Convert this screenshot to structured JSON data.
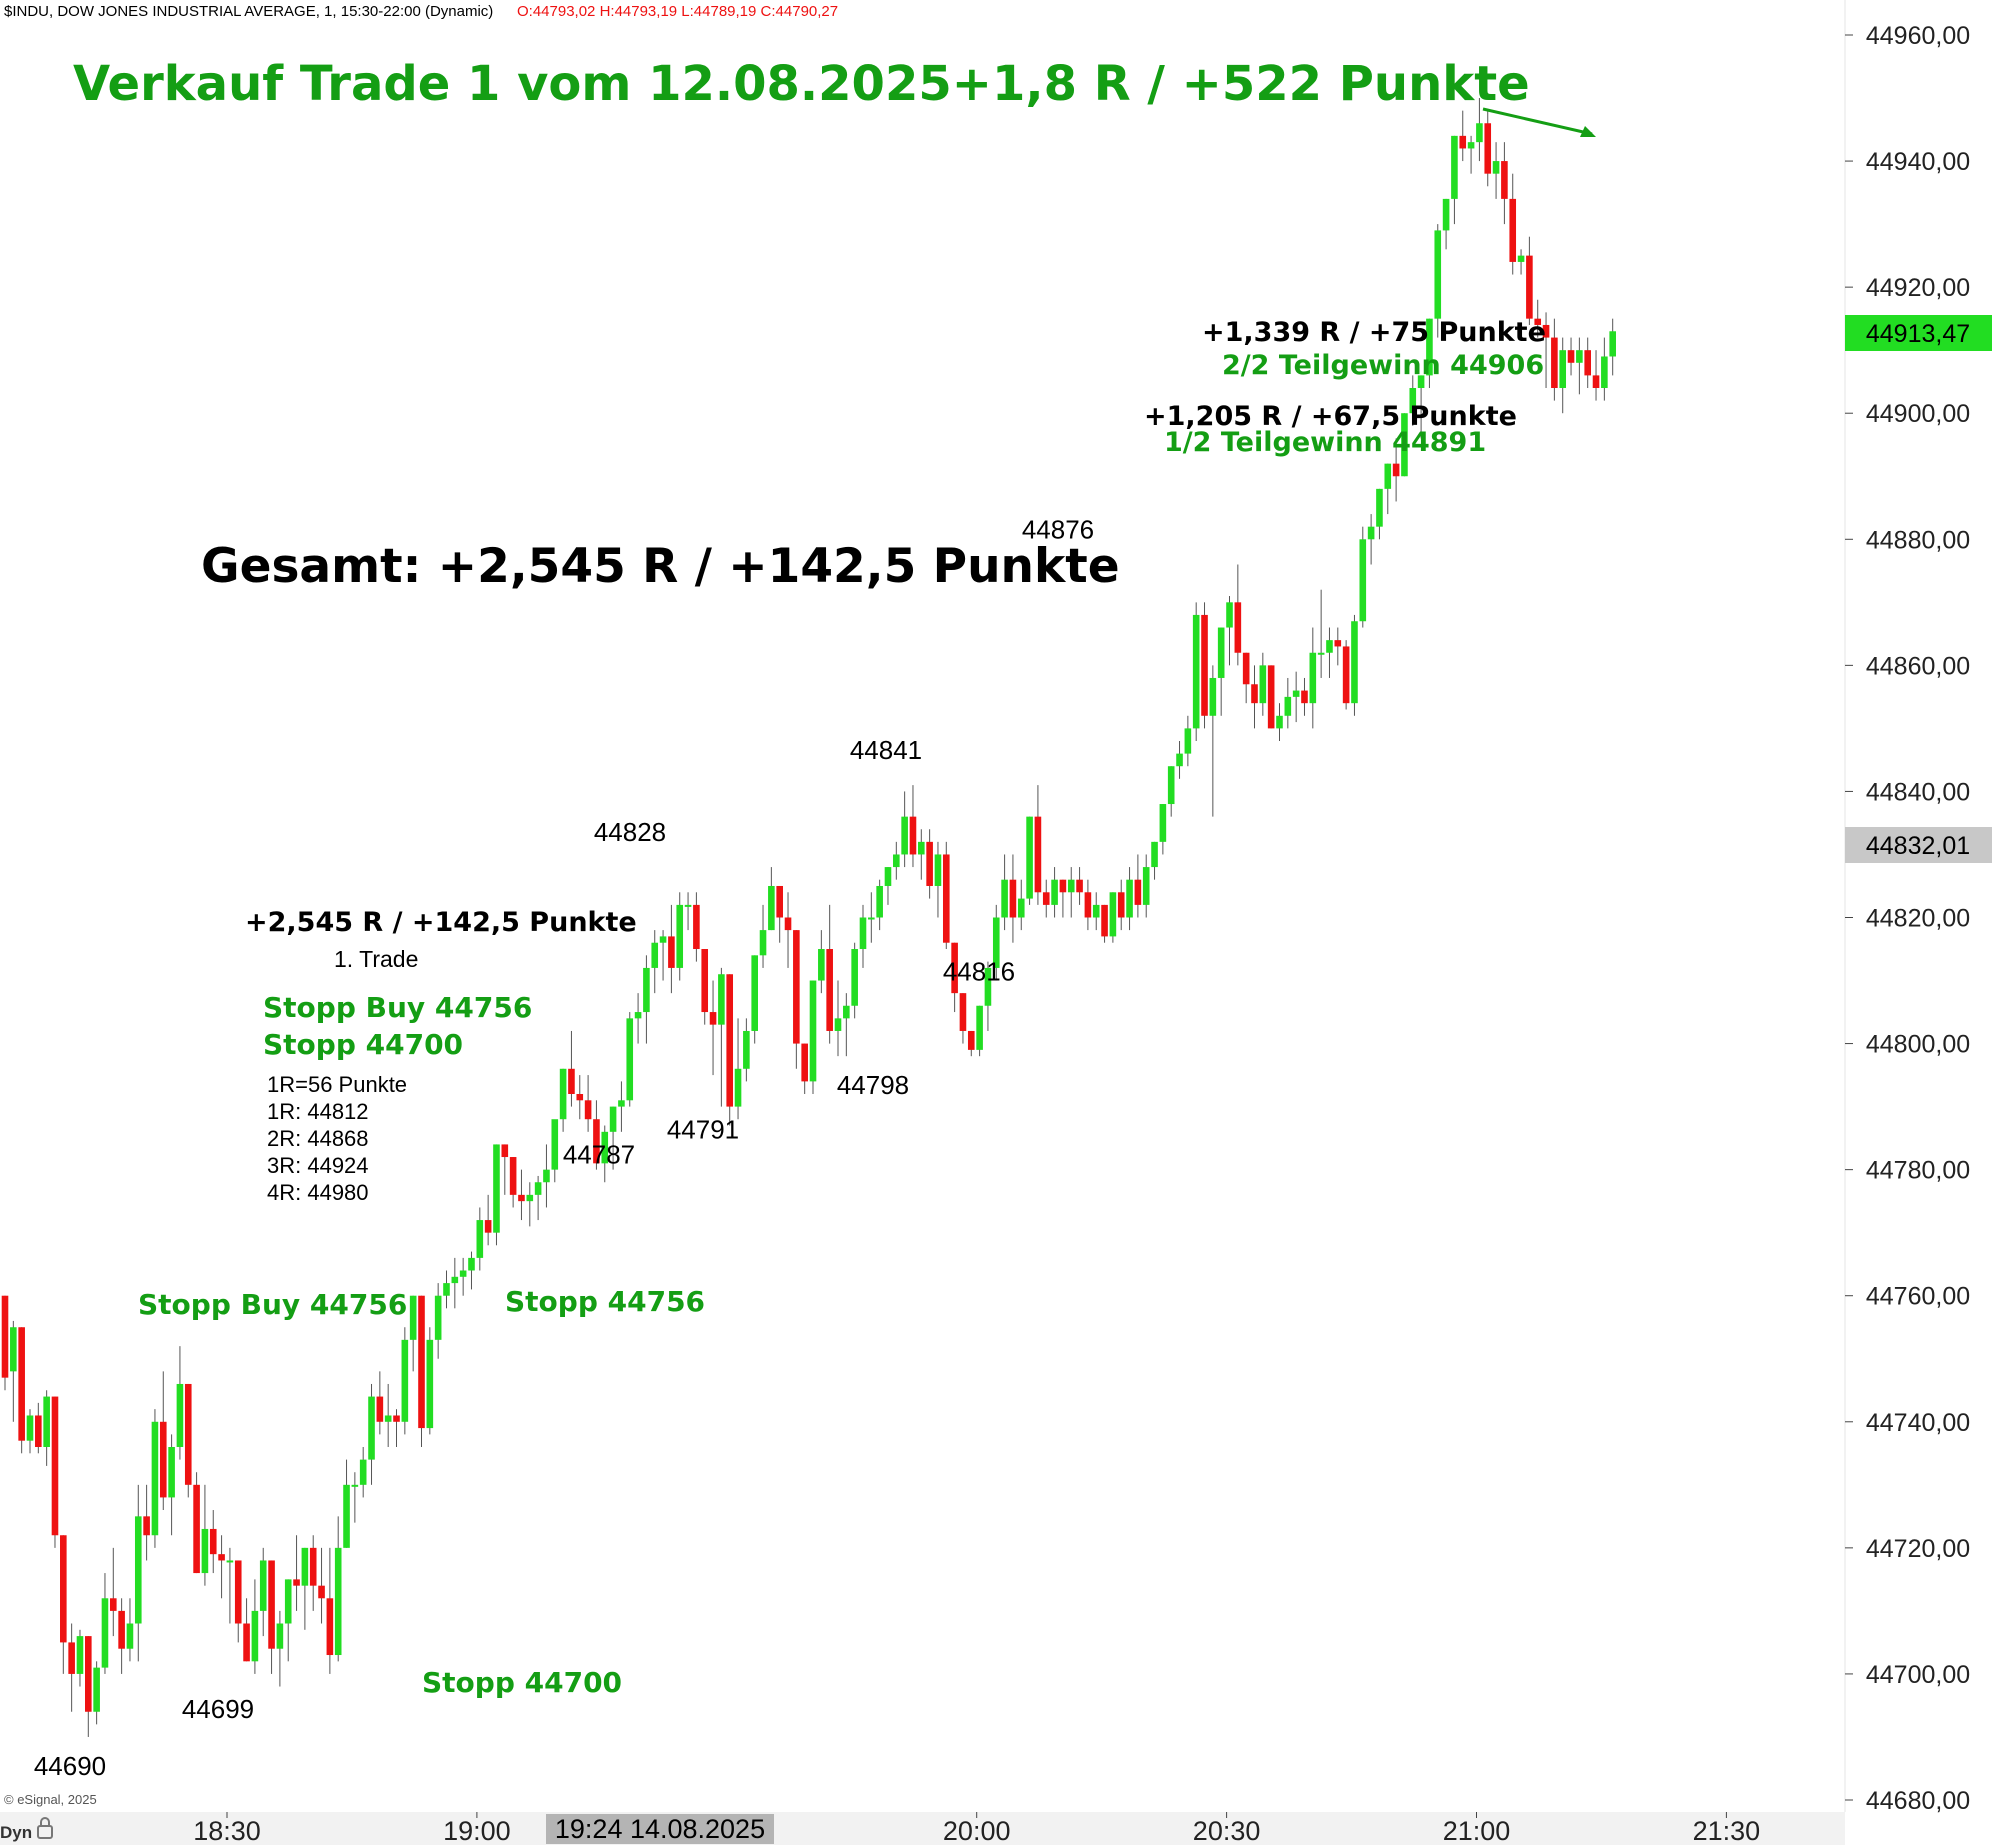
{
  "header": {
    "symbol_info": "$INDU, DOW JONES INDUSTRIAL AVERAGE, 1, 15:30-22:00 (Dynamic)",
    "ohlc": "O:44793,02 H:44793,19 L:44789,19 C:44790,27"
  },
  "footer": {
    "copyright": "© eSignal, 2025",
    "left_label": "Dyn",
    "lock_icon": "lock-icon",
    "cursor_time": "19:24 14.08.2025"
  },
  "price_axis": {
    "last_price": "44913,47",
    "last_price_color": "#22dd22",
    "cursor_price": "44832,01",
    "ticks": [
      "44960,00",
      "44940,00",
      "44920,00",
      "44900,00",
      "44880,00",
      "44860,00",
      "44840,00",
      "44820,00",
      "44800,00",
      "44780,00",
      "44760,00",
      "44740,00",
      "44720,00",
      "44700,00",
      "44680,00"
    ]
  },
  "annotations": {
    "headline": "Verkauf Trade 1 vom 12.08.2025+1,8 R / +522 Punkte",
    "total": "Gesamt: +2,545 R / +142,5 Punkte",
    "result_2": "+1,339 R / +75 Punkte",
    "partial_2": "2/2 Teilgewinn 44906",
    "result_1": "+1,205 R / +67,5 Punkte",
    "partial_1": "1/2 Teilgewinn 44891",
    "trade_result": "+2,545 R / +142,5 Punkte",
    "trade_label": "1. Trade",
    "stop_buy_a": "Stopp Buy 44756",
    "stop_a": "Stopp 44700",
    "r_lines": [
      "1R=56 Punkte",
      "1R: 44812",
      "2R: 44868",
      "3R: 44924",
      "4R: 44980"
    ],
    "stop_buy_b": "Stopp Buy 44756",
    "stop_b": "Stopp 44756",
    "stop_c": "Stopp 44700",
    "colors": {
      "green": "#149e14",
      "black": "#000000",
      "up": "#22dd22",
      "down": "#ee1111"
    }
  },
  "chart_data": {
    "type": "candlestick",
    "title": "$INDU, DOW JONES INDUSTRIAL AVERAGE, 1, 15:30-22:00 (Dynamic)",
    "x_ticks": [
      "18:30",
      "19:00",
      "20:00",
      "20:30",
      "21:00",
      "21:30"
    ],
    "ylim": [
      44680,
      44965
    ],
    "swing_labels": [
      {
        "label": "44690",
        "t": 70,
        "v": 44690
      },
      {
        "label": "44699",
        "t": 218,
        "v": 44699
      },
      {
        "label": "44787",
        "t": 599,
        "v": 44787
      },
      {
        "label": "44828",
        "t": 630,
        "v": 44828
      },
      {
        "label": "44791",
        "t": 703,
        "v": 44791
      },
      {
        "label": "44841",
        "t": 886,
        "v": 44841
      },
      {
        "label": "44798",
        "t": 873,
        "v": 44798
      },
      {
        "label": "44816",
        "t": 979,
        "v": 44816
      },
      {
        "label": "44876",
        "t": 1058,
        "v": 44876
      }
    ],
    "candles": [
      [
        44760,
        44760,
        44745,
        44747
      ],
      [
        44748,
        44756,
        44740,
        44755
      ],
      [
        44755,
        44755,
        44735,
        44737
      ],
      [
        44737,
        44742,
        44735,
        44741
      ],
      [
        44741,
        44743,
        44735,
        44736
      ],
      [
        44736,
        44745,
        44733,
        44744
      ],
      [
        44744,
        44744,
        44720,
        44722
      ],
      [
        44722,
        44722,
        44700,
        44705
      ],
      [
        44705,
        44708,
        44694,
        44700
      ],
      [
        44700,
        44707,
        44698,
        44706
      ],
      [
        44706,
        44706,
        44690,
        44694
      ],
      [
        44694,
        44702,
        44692,
        44701
      ],
      [
        44701,
        44716,
        44700,
        44712
      ],
      [
        44712,
        44720,
        44706,
        44710
      ],
      [
        44710,
        44712,
        44700,
        44704
      ],
      [
        44704,
        44712,
        44702,
        44708
      ],
      [
        44708,
        44730,
        44702,
        44725
      ],
      [
        44725,
        44730,
        44718,
        44722
      ],
      [
        44722,
        44742,
        44720,
        44740
      ],
      [
        44740,
        44748,
        44726,
        44728
      ],
      [
        44728,
        44738,
        44722,
        44736
      ],
      [
        44736,
        44752,
        44734,
        44746
      ],
      [
        44746,
        44746,
        44728,
        44730
      ],
      [
        44730,
        44732,
        44716,
        44716
      ],
      [
        44716,
        44730,
        44714,
        44723
      ],
      [
        44723,
        44726,
        44716,
        44719
      ],
      [
        44719,
        44722,
        44712,
        44718
      ],
      [
        44718,
        44720,
        44708,
        44718
      ],
      [
        44718,
        44718,
        44705,
        44708
      ],
      [
        44708,
        44712,
        44702,
        44702
      ],
      [
        44702,
        44715,
        44700,
        44710
      ],
      [
        44710,
        44720,
        44706,
        44718
      ],
      [
        44718,
        44718,
        44700,
        44704
      ],
      [
        44704,
        44710,
        44698,
        44708
      ],
      [
        44708,
        44715,
        44702,
        44715
      ],
      [
        44715,
        44722,
        44710,
        44714
      ],
      [
        44714,
        44720,
        44707,
        44720
      ],
      [
        44720,
        44722,
        44710,
        44714
      ],
      [
        44714,
        44720,
        44708,
        44712
      ],
      [
        44712,
        44720,
        44700,
        44703
      ],
      [
        44703,
        44725,
        44702,
        44720
      ],
      [
        44720,
        44734,
        44720,
        44730
      ],
      [
        44730,
        44732,
        44724,
        44730
      ],
      [
        44730,
        44736,
        44728,
        44734
      ],
      [
        44734,
        44746,
        44730,
        44744
      ],
      [
        44744,
        44748,
        44738,
        44740
      ],
      [
        44740,
        44746,
        44736,
        44741
      ],
      [
        44741,
        44742,
        44736,
        44740
      ],
      [
        44740,
        44755,
        44738,
        44753
      ],
      [
        44753,
        44760,
        44748,
        44760
      ],
      [
        44760,
        44760,
        44736,
        44739
      ],
      [
        44739,
        44755,
        44738,
        44753
      ],
      [
        44753,
        44762,
        44750,
        44760
      ],
      [
        44760,
        44764,
        44758,
        44762
      ],
      [
        44762,
        44766,
        44758,
        44763
      ],
      [
        44763,
        44766,
        44760,
        44764
      ],
      [
        44764,
        44767,
        44761,
        44766
      ],
      [
        44766,
        44774,
        44764,
        44772
      ],
      [
        44772,
        44776,
        44768,
        44770
      ],
      [
        44770,
        44784,
        44768,
        44784
      ],
      [
        44784,
        44784,
        44776,
        44782
      ],
      [
        44782,
        44782,
        44774,
        44776
      ],
      [
        44776,
        44780,
        44772,
        44775
      ],
      [
        44775,
        44778,
        44771,
        44776
      ],
      [
        44776,
        44779,
        44772,
        44778
      ],
      [
        44778,
        44784,
        44774,
        44780
      ],
      [
        44780,
        44786,
        44778,
        44788
      ],
      [
        44788,
        44796,
        44786,
        44796
      ],
      [
        44796,
        44802,
        44790,
        44792
      ],
      [
        44792,
        44795,
        44788,
        44791
      ],
      [
        44791,
        44795,
        44786,
        44788
      ],
      [
        44788,
        44791,
        44780,
        44781
      ],
      [
        44781,
        44787,
        44778,
        44786
      ],
      [
        44786,
        44790,
        44780,
        44790
      ],
      [
        44790,
        44794,
        44786,
        44791
      ],
      [
        44791,
        44805,
        44790,
        44804
      ],
      [
        44804,
        44808,
        44800,
        44805
      ],
      [
        44805,
        44814,
        44800,
        44812
      ],
      [
        44812,
        44818,
        44808,
        44816
      ],
      [
        44816,
        44818,
        44810,
        44817
      ],
      [
        44817,
        44822,
        44808,
        44812
      ],
      [
        44812,
        44824,
        44810,
        44822
      ],
      [
        44822,
        44824,
        44818,
        44822
      ],
      [
        44822,
        44824,
        44813,
        44815
      ],
      [
        44815,
        44815,
        44803,
        44805
      ],
      [
        44805,
        44810,
        44795,
        44803
      ],
      [
        44803,
        44812,
        44790,
        44811
      ],
      [
        44811,
        44811,
        44787,
        44790
      ],
      [
        44790,
        44804,
        44788,
        44796
      ],
      [
        44796,
        44804,
        44794,
        44802
      ],
      [
        44802,
        44814,
        44800,
        44814
      ],
      [
        44814,
        44822,
        44812,
        44818
      ],
      [
        44818,
        44828,
        44818,
        44825
      ],
      [
        44825,
        44825,
        44816,
        44820
      ],
      [
        44820,
        44824,
        44812,
        44818
      ],
      [
        44818,
        44818,
        44796,
        44800
      ],
      [
        44800,
        44800,
        44792,
        44794
      ],
      [
        44794,
        44810,
        44792,
        44810
      ],
      [
        44810,
        44818,
        44808,
        44815
      ],
      [
        44815,
        44822,
        44800,
        44802
      ],
      [
        44802,
        44810,
        44798,
        44804
      ],
      [
        44804,
        44808,
        44798,
        44806
      ],
      [
        44806,
        44816,
        44804,
        44815
      ],
      [
        44815,
        44822,
        44812,
        44820
      ],
      [
        44820,
        44824,
        44816,
        44820
      ],
      [
        44820,
        44826,
        44818,
        44825
      ],
      [
        44825,
        44828,
        44822,
        44828
      ],
      [
        44828,
        44832,
        44826,
        44830
      ],
      [
        44830,
        44840,
        44828,
        44836
      ],
      [
        44836,
        44841,
        44828,
        44830
      ],
      [
        44830,
        44834,
        44826,
        44832
      ],
      [
        44832,
        44834,
        44823,
        44825
      ],
      [
        44825,
        44832,
        44820,
        44830
      ],
      [
        44830,
        44832,
        44815,
        44816
      ],
      [
        44816,
        44816,
        44805,
        44808
      ],
      [
        44808,
        44808,
        44800,
        44802
      ],
      [
        44802,
        44802,
        44798,
        44799
      ],
      [
        44799,
        44806,
        44798,
        44806
      ],
      [
        44806,
        44813,
        44802,
        44812
      ],
      [
        44812,
        44822,
        44810,
        44820
      ],
      [
        44820,
        44830,
        44818,
        44826
      ],
      [
        44826,
        44830,
        44816,
        44820
      ],
      [
        44820,
        44826,
        44818,
        44823
      ],
      [
        44823,
        44836,
        44822,
        44836
      ],
      [
        44836,
        44841,
        44822,
        44824
      ],
      [
        44824,
        44826,
        44820,
        44822
      ],
      [
        44822,
        44828,
        44820,
        44826
      ],
      [
        44826,
        44826,
        44820,
        44824
      ],
      [
        44824,
        44828,
        44820,
        44826
      ],
      [
        44826,
        44828,
        44822,
        44824
      ],
      [
        44824,
        44826,
        44818,
        44820
      ],
      [
        44820,
        44824,
        44818,
        44822
      ],
      [
        44822,
        44822,
        44816,
        44817
      ],
      [
        44817,
        44824,
        44816,
        44824
      ],
      [
        44824,
        44826,
        44818,
        44820
      ],
      [
        44820,
        44828,
        44818,
        44826
      ],
      [
        44826,
        44830,
        44820,
        44822
      ],
      [
        44822,
        44830,
        44820,
        44828
      ],
      [
        44828,
        44832,
        44826,
        44832
      ],
      [
        44832,
        44838,
        44830,
        44838
      ],
      [
        44838,
        44844,
        44836,
        44844
      ],
      [
        44844,
        44848,
        44842,
        44846
      ],
      [
        44846,
        44852,
        44844,
        44850
      ],
      [
        44850,
        44870,
        44848,
        44868
      ],
      [
        44868,
        44870,
        44850,
        44852
      ],
      [
        44852,
        44860,
        44836,
        44858
      ],
      [
        44858,
        44866,
        44852,
        44866
      ],
      [
        44866,
        44871,
        44860,
        44870
      ],
      [
        44870,
        44876,
        44860,
        44862
      ],
      [
        44862,
        44862,
        44854,
        44857
      ],
      [
        44857,
        44860,
        44850,
        44854
      ],
      [
        44854,
        44862,
        44852,
        44860
      ],
      [
        44860,
        44860,
        44850,
        44850
      ],
      [
        44850,
        44854,
        44848,
        44852
      ],
      [
        44852,
        44858,
        44850,
        44855
      ],
      [
        44855,
        44859,
        44851,
        44856
      ],
      [
        44856,
        44858,
        44852,
        44854
      ],
      [
        44854,
        44866,
        44850,
        44862
      ],
      [
        44862,
        44872,
        44858,
        44862
      ],
      [
        44862,
        44866,
        44858,
        44864
      ],
      [
        44864,
        44866,
        44860,
        44863
      ],
      [
        44863,
        44864,
        44853,
        44854
      ],
      [
        44854,
        44868,
        44852,
        44867
      ],
      [
        44867,
        44882,
        44866,
        44880
      ],
      [
        44880,
        44884,
        44876,
        44882
      ],
      [
        44882,
        44888,
        44880,
        44888
      ],
      [
        44888,
        44892,
        44884,
        44892
      ],
      [
        44892,
        44896,
        44886,
        44890
      ],
      [
        44890,
        44900,
        44890,
        44900
      ],
      [
        44900,
        44906,
        44898,
        44904
      ],
      [
        44904,
        44906,
        44896,
        44906
      ],
      [
        44906,
        44915,
        44904,
        44915
      ],
      [
        44915,
        44930,
        44912,
        44929
      ],
      [
        44929,
        44934,
        44926,
        44934
      ],
      [
        44934,
        44944,
        44930,
        44944
      ],
      [
        44944,
        44948,
        44940,
        44942
      ],
      [
        44942,
        44944,
        44938,
        44943
      ],
      [
        44943,
        44950,
        44940,
        44946
      ],
      [
        44946,
        44948,
        44936,
        44938
      ],
      [
        44938,
        44943,
        44934,
        44940
      ],
      [
        44940,
        44943,
        44930,
        44934
      ],
      [
        44934,
        44938,
        44922,
        44924
      ],
      [
        44924,
        44926,
        44922,
        44925
      ],
      [
        44925,
        44928,
        44914,
        44915
      ],
      [
        44915,
        44918,
        44912,
        44914
      ],
      [
        44914,
        44916,
        44904,
        44912
      ],
      [
        44912,
        44915,
        44902,
        44904
      ],
      [
        44904,
        44912,
        44900,
        44910
      ],
      [
        44910,
        44912,
        44906,
        44908
      ],
      [
        44908,
        44912,
        44903,
        44910
      ],
      [
        44910,
        44912,
        44904,
        44906
      ],
      [
        44906,
        44910,
        44902,
        44904
      ],
      [
        44904,
        44912,
        44902,
        44909
      ],
      [
        44909,
        44915,
        44906,
        44913
      ]
    ]
  }
}
